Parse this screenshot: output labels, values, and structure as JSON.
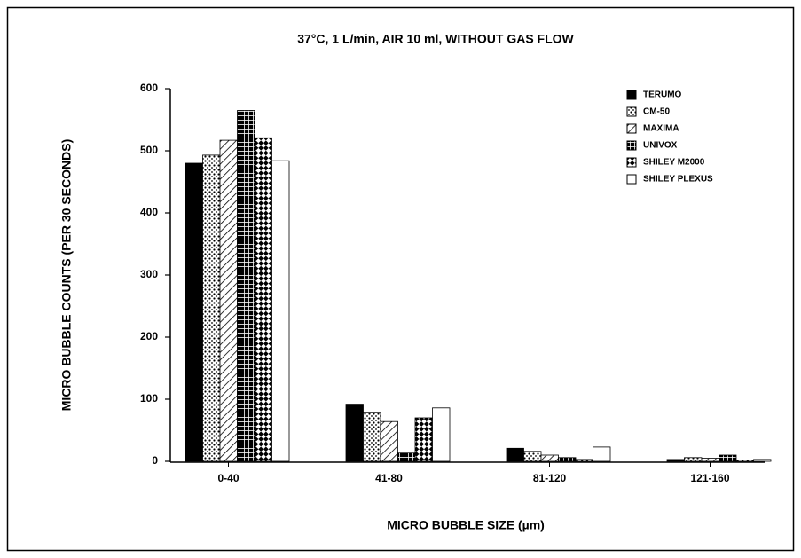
{
  "chart_data": {
    "type": "bar",
    "title": "37°C, 1 L/min, AIR 10 ml, WITHOUT GAS FLOW",
    "x_label": "MICRO BUBBLE SIZE (µm)",
    "y_label": "MICRO BUBBLE COUNTS (PER 30 SECONDS)",
    "categories": [
      "0-40",
      "41-80",
      "81-120",
      "121-160"
    ],
    "ylim": [
      0,
      600
    ],
    "yticks": [
      0,
      100,
      200,
      300,
      400,
      500,
      600
    ],
    "grid": false,
    "legend": "upper right",
    "series": [
      {
        "name": "TERUMO",
        "color": "#000000",
        "pattern": "solid",
        "values": [
          480,
          92,
          21,
          3
        ]
      },
      {
        "name": "CM-50",
        "color": "#000000",
        "pattern": "dots",
        "values": [
          493,
          79,
          16,
          6
        ]
      },
      {
        "name": "MAXIMA",
        "color": "#000000",
        "pattern": "hatch",
        "values": [
          517,
          64,
          10,
          5
        ]
      },
      {
        "name": "UNIVOX",
        "color": "#000000",
        "pattern": "grid",
        "values": [
          565,
          14,
          6,
          10
        ]
      },
      {
        "name": "SHILEY M2000",
        "color": "#000000",
        "pattern": "checker",
        "values": [
          521,
          70,
          3,
          2
        ]
      },
      {
        "name": "SHILEY PLEXUS",
        "color": "#000000",
        "pattern": "open",
        "values": [
          484,
          86,
          23,
          3
        ]
      }
    ]
  }
}
